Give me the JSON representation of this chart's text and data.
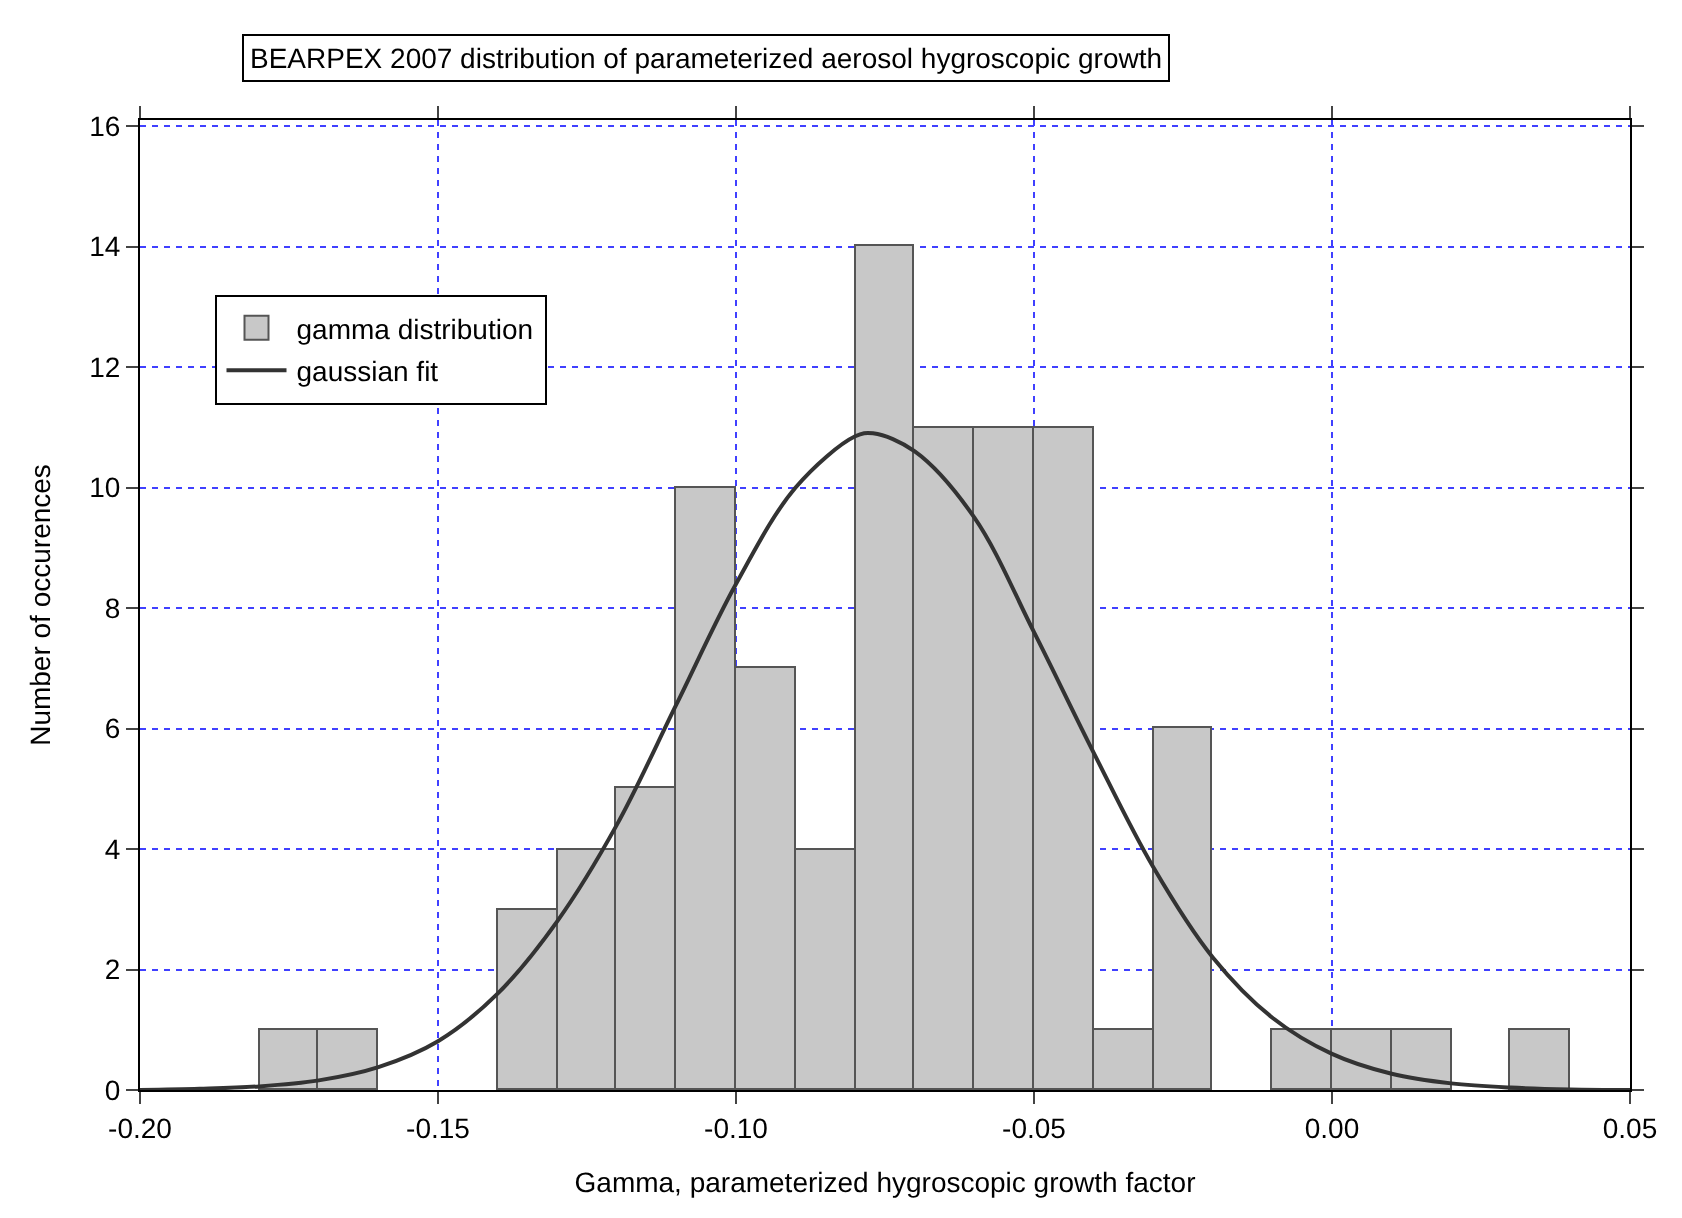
{
  "chart_data": {
    "type": "histogram",
    "title": "BEARPEX 2007 distribution of parameterized aerosol hygroscopic growth",
    "xlabel": "Gamma, parameterized hygroscopic growth factor",
    "ylabel": "Number of occurences",
    "series": [
      {
        "name": "gamma distribution",
        "color": "#c8c8c8",
        "bins": [
          -0.18,
          -0.17,
          -0.16,
          -0.15,
          -0.14,
          -0.13,
          -0.12,
          -0.11,
          -0.1,
          -0.09,
          -0.08,
          -0.07,
          -0.06,
          -0.05,
          -0.04,
          -0.03,
          -0.02,
          -0.01,
          0.0,
          0.01,
          0.02,
          0.03,
          0.04
        ],
        "values": [
          1,
          1,
          0,
          0,
          3,
          4,
          5,
          10,
          7,
          4,
          14,
          11,
          11,
          11,
          1,
          6,
          0,
          1,
          1,
          1,
          0,
          1
        ]
      },
      {
        "name": "gaussian fit",
        "type": "line",
        "color": "#333333",
        "x": [
          -0.2,
          -0.19,
          -0.18,
          -0.17,
          -0.16,
          -0.15,
          -0.14,
          -0.13,
          -0.12,
          -0.11,
          -0.1,
          -0.09,
          -0.08,
          -0.077,
          -0.07,
          -0.06,
          -0.05,
          -0.04,
          -0.03,
          -0.02,
          -0.01,
          0.0,
          0.01,
          0.02,
          0.03,
          0.04,
          0.05
        ],
        "values": [
          0.0,
          0.02,
          0.06,
          0.16,
          0.38,
          0.81,
          1.6,
          2.8,
          4.4,
          6.4,
          8.4,
          10.0,
          10.85,
          10.9,
          10.6,
          9.5,
          7.6,
          5.6,
          3.7,
          2.2,
          1.2,
          0.6,
          0.27,
          0.11,
          0.04,
          0.01,
          0.0
        ]
      }
    ],
    "xlim": [
      -0.2,
      0.05
    ],
    "xticks": [
      {
        "value": -0.2,
        "label": "-0.20"
      },
      {
        "value": -0.15,
        "label": "-0.15"
      },
      {
        "value": -0.1,
        "label": "-0.10"
      },
      {
        "value": -0.05,
        "label": "-0.05"
      },
      {
        "value": 0,
        "label": "0.00"
      },
      {
        "value": 0.05,
        "label": "0.05"
      }
    ],
    "ylim": [
      0,
      16.1
    ],
    "yticks": [
      0,
      2,
      4,
      6,
      8,
      10,
      12,
      14,
      16
    ],
    "grid": true,
    "legend": "top left"
  }
}
